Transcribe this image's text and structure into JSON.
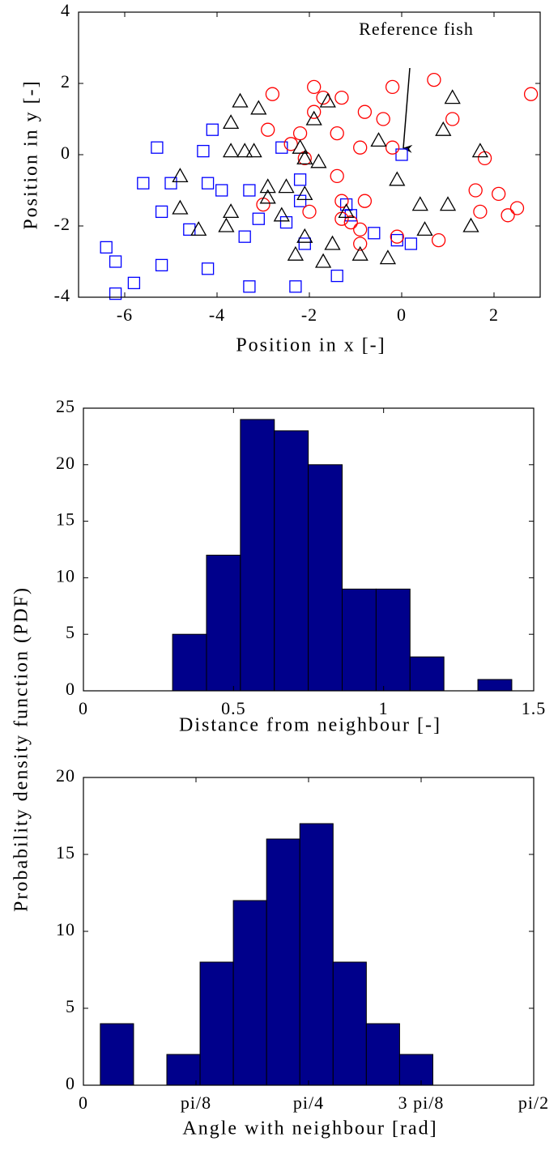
{
  "chart_data": [
    {
      "type": "scatter",
      "xlabel": "Position in x [-]",
      "ylabel": "Position in y [-]",
      "annotation": "Reference fish",
      "xlim": [
        -7,
        3
      ],
      "xticks": [
        -6,
        -4,
        -2,
        0,
        2
      ],
      "ylim": [
        -4,
        4
      ],
      "yticks": [
        -4,
        -2,
        0,
        2,
        4
      ],
      "series": [
        {
          "marker": "square",
          "color": "#0000ff",
          "x": [
            -6.4,
            -6.2,
            -6.2,
            -5.8,
            -5.6,
            -5.3,
            -5.2,
            -5.0,
            -5.2,
            -4.6,
            -4.1,
            -4.3,
            -4.2,
            -4.2,
            -3.9,
            -3.4,
            -3.3,
            -3.3,
            -3.1,
            -2.5,
            -2.6,
            -2.2,
            -2.2,
            -2.1,
            -2.3,
            -1.2,
            -1.1,
            -1.4,
            -0.6,
            -0.1,
            0.2,
            0
          ],
          "y": [
            -2.6,
            -3.0,
            -3.9,
            -3.6,
            -0.8,
            0.2,
            -1.6,
            -0.8,
            -3.1,
            -2.1,
            0.7,
            0.1,
            -0.8,
            -3.2,
            -1.0,
            -2.3,
            -1.0,
            -3.7,
            -1.8,
            -1.9,
            0.2,
            -1.3,
            -0.7,
            -2.5,
            -3.7,
            -1.4,
            -1.7,
            -3.4,
            -2.2,
            -2.4,
            -2.5,
            0
          ]
        },
        {
          "marker": "circle",
          "color": "#ff0000",
          "x": [
            -2.8,
            -1.9,
            -2.9,
            -1.7,
            -1.9,
            -1.3,
            -1.4,
            -0.9,
            -2.2,
            -2.4,
            -2.1,
            -1.4,
            -3.0,
            -2.0,
            -1.3,
            -0.8,
            -1.3,
            -1.1,
            -0.9,
            -0.9,
            -0.1,
            -0.8,
            -0.4,
            -0.2,
            -0.2,
            0.7,
            1.1,
            0.8,
            1.6,
            1.7,
            2.1,
            2.3,
            2.5,
            2.8,
            1.8
          ],
          "y": [
            1.7,
            1.9,
            0.7,
            1.6,
            1.2,
            1.6,
            0.6,
            0.2,
            0.6,
            0.3,
            -0.1,
            -0.6,
            -1.4,
            -1.6,
            -1.3,
            -1.3,
            -1.8,
            -1.9,
            -2.1,
            -2.5,
            -2.3,
            1.2,
            1.0,
            1.9,
            0.2,
            2.1,
            1.0,
            -2.4,
            -1.0,
            -1.6,
            -1.1,
            -1.7,
            -1.5,
            1.7,
            -0.1
          ]
        },
        {
          "marker": "triangle",
          "color": "#000000",
          "x": [
            -1.6,
            -3.5,
            -3.7,
            -3.1,
            -3.7,
            -3.4,
            -3.2,
            -4.8,
            -4.8,
            -4.4,
            -3.8,
            -3.7,
            -2.9,
            -2.9,
            -2.6,
            -2.5,
            -2.3,
            -2.1,
            -2.1,
            -2.2,
            -2.1,
            -1.9,
            -1.8,
            -1.7,
            -1.5,
            -1.2,
            -0.9,
            -0.3,
            -0.5,
            -0.1,
            0.4,
            0.5,
            0.9,
            1.1,
            1.0,
            1.5,
            1.7
          ],
          "y": [
            1.5,
            1.5,
            0.9,
            1.3,
            0.1,
            0.1,
            0.1,
            -0.6,
            -1.5,
            -2.1,
            -2.0,
            -1.6,
            -0.9,
            -1.2,
            -1.7,
            -0.9,
            -2.8,
            -2.3,
            -1.1,
            0.2,
            -0.1,
            1.0,
            -0.2,
            -3.0,
            -2.5,
            -1.6,
            -2.8,
            -2.9,
            0.4,
            -0.7,
            -1.4,
            -2.1,
            0.7,
            1.6,
            -1.4,
            -2.0,
            0.1
          ]
        }
      ]
    },
    {
      "type": "histogram",
      "xlabel": "Distance from neighbour [-]",
      "ylabel": "Probability density function (PDF)",
      "color": "#00008b",
      "xlim": [
        0,
        1.5
      ],
      "xticks": [
        0,
        0.5,
        1,
        1.5
      ],
      "ylim": [
        0,
        25
      ],
      "yticks": [
        0,
        5,
        10,
        15,
        20,
        25
      ],
      "bins": [
        0.297,
        0.41,
        0.523,
        0.636,
        0.749,
        0.862,
        0.975,
        1.088,
        1.201,
        1.314,
        1.427
      ],
      "values": [
        5,
        12,
        24,
        23,
        20,
        9,
        9,
        3,
        0,
        1
      ]
    },
    {
      "type": "histogram",
      "xlabel": "Angle with neighbour [rad]",
      "color": "#00008b",
      "xlim": [
        0,
        1.5708
      ],
      "xticks": [
        0,
        {
          "value": 0.3927,
          "label": "pi/8"
        },
        {
          "value": 0.7854,
          "label": "pi/4"
        },
        {
          "value": 1.1781,
          "label": "3 pi/8"
        },
        {
          "value": 1.5708,
          "label": "pi/2"
        }
      ],
      "ylim": [
        0,
        20
      ],
      "yticks": [
        0,
        5,
        10,
        15,
        20
      ],
      "bins": [
        0.059,
        0.175,
        0.291,
        0.407,
        0.523,
        0.639,
        0.755,
        0.871,
        0.987,
        1.103,
        1.219
      ],
      "values": [
        4,
        0,
        2,
        8,
        12,
        16,
        17,
        8,
        4,
        2
      ]
    }
  ]
}
